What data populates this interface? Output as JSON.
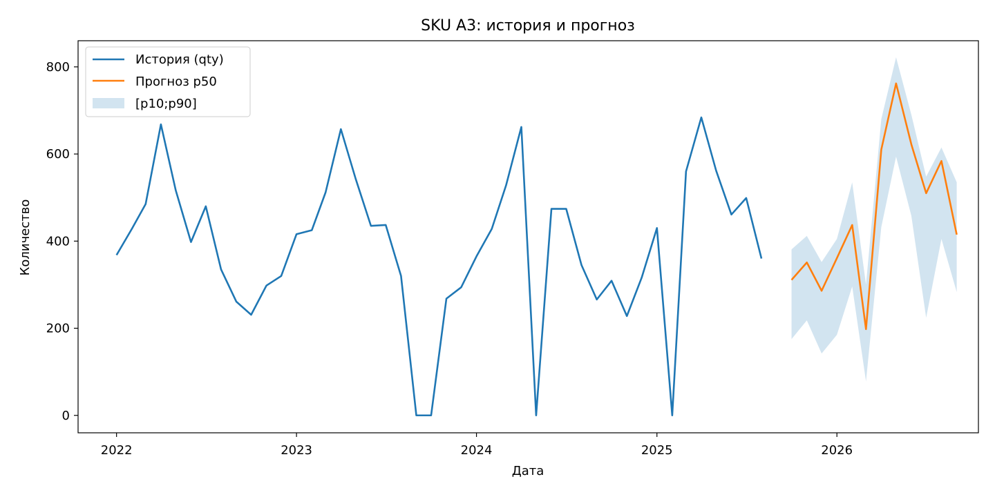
{
  "chart_data": {
    "type": "line",
    "title": "SKU A3: история и прогноз",
    "xlabel": "Дата",
    "ylabel": "Количество",
    "xlim": [
      "2021-10-15",
      "2026-10-15"
    ],
    "ylim": [
      -40,
      860
    ],
    "x_ticks": [
      "2022",
      "2023",
      "2024",
      "2025",
      "2026"
    ],
    "y_ticks": [
      "0",
      "200",
      "400",
      "600",
      "800"
    ],
    "grid": false,
    "legend_position": "top-left",
    "series": [
      {
        "name": "История (qty)",
        "color": "#1f77b4",
        "x": [
          "2022-01-01",
          "2022-02-01",
          "2022-03-01",
          "2022-04-01",
          "2022-05-01",
          "2022-06-01",
          "2022-07-01",
          "2022-08-01",
          "2022-09-01",
          "2022-10-01",
          "2022-11-01",
          "2022-12-01",
          "2023-01-01",
          "2023-02-01",
          "2023-03-01",
          "2023-04-01",
          "2023-05-01",
          "2023-06-01",
          "2023-07-01",
          "2023-08-01",
          "2023-09-01",
          "2023-10-01",
          "2023-11-01",
          "2023-12-01",
          "2024-01-01",
          "2024-02-01",
          "2024-03-01",
          "2024-04-01",
          "2024-05-01",
          "2024-06-01",
          "2024-07-01",
          "2024-08-01",
          "2024-09-01",
          "2024-10-01",
          "2024-11-01",
          "2024-12-01",
          "2025-01-01",
          "2025-02-01",
          "2025-03-01",
          "2025-04-01",
          "2025-05-01",
          "2025-06-01",
          "2025-07-01",
          "2025-08-01"
        ],
        "values": [
          368,
          428,
          485,
          668,
          517,
          398,
          480,
          335,
          261,
          231,
          298,
          320,
          416,
          425,
          512,
          657,
          543,
          435,
          437,
          320,
          0,
          0,
          268,
          294,
          365,
          428,
          528,
          662,
          0,
          474,
          474,
          345,
          266,
          309,
          228,
          316,
          430,
          0,
          560,
          684,
          562,
          461,
          499,
          360
        ]
      },
      {
        "name": "Прогноз p50",
        "color": "#ff7f0e",
        "x": [
          "2025-10-01",
          "2025-11-01",
          "2025-12-01",
          "2026-01-01",
          "2026-02-01",
          "2026-03-01",
          "2026-04-01",
          "2026-05-01",
          "2026-06-01",
          "2026-07-01",
          "2026-08-01",
          "2026-09-01"
        ],
        "values": [
          311,
          351,
          286,
          361,
          437,
          198,
          610,
          762,
          622,
          510,
          584,
          415
        ]
      }
    ],
    "band": {
      "name": "[p10;p90]",
      "color": "#1f77b4",
      "opacity": 0.2,
      "x": [
        "2025-10-01",
        "2025-11-01",
        "2025-12-01",
        "2026-01-01",
        "2026-02-01",
        "2026-03-01",
        "2026-04-01",
        "2026-05-01",
        "2026-06-01",
        "2026-07-01",
        "2026-08-01",
        "2026-09-01"
      ],
      "low": [
        175,
        218,
        142,
        185,
        296,
        78,
        432,
        594,
        458,
        224,
        405,
        283
      ],
      "high": [
        381,
        412,
        352,
        405,
        535,
        300,
        680,
        822,
        690,
        548,
        615,
        535
      ]
    }
  }
}
